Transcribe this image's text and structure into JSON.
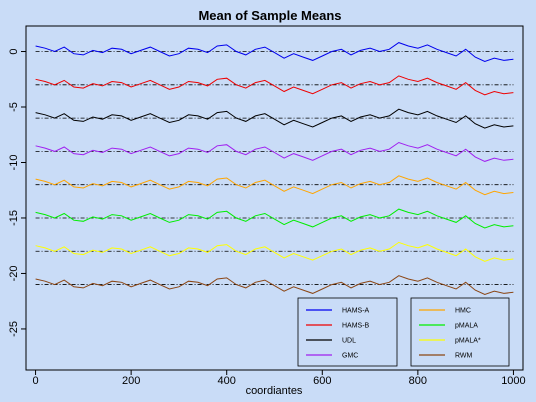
{
  "chart_data": {
    "type": "line",
    "title": "Mean of Sample Means",
    "xlabel": "coordiantes",
    "ylabel": "",
    "xlim": [
      -20,
      1020
    ],
    "ylim": [
      -28.7,
      2.3
    ],
    "x_ticks": [
      0,
      200,
      400,
      600,
      800,
      1000
    ],
    "y_ticks": [
      0,
      -5,
      -10,
      -15,
      -20,
      -25
    ],
    "x_tick_labels": [
      "0",
      "200",
      "400",
      "600",
      "800",
      "1000"
    ],
    "y_tick_labels": [
      "0",
      "-5",
      "-10",
      "-15",
      "-20",
      "-25"
    ],
    "reference_lines": [
      0,
      -3,
      -6,
      -9,
      -12,
      -15,
      -18,
      -21
    ],
    "legend_position": "bottom-right",
    "legend_columns": [
      [
        "HAMS-A",
        "HAMS-B",
        "UDL",
        "GMC"
      ],
      [
        "HMC",
        "pMALA",
        "pMALA*",
        "RWM"
      ]
    ],
    "series": [
      {
        "name": "HAMS-A",
        "color": "#0000ee",
        "offset": 0,
        "x": [
          0,
          20,
          40,
          60,
          80,
          100,
          120,
          140,
          160,
          180,
          200,
          220,
          240,
          260,
          280,
          300,
          320,
          340,
          360,
          380,
          400,
          420,
          440,
          460,
          480,
          500,
          520,
          540,
          560,
          580,
          600,
          620,
          640,
          660,
          680,
          700,
          720,
          740,
          760,
          780,
          800,
          820,
          840,
          860,
          880,
          900,
          920,
          940,
          960,
          980,
          1000
        ],
        "values": [
          0.5,
          0.3,
          0.0,
          0.4,
          -0.2,
          -0.3,
          0.1,
          -0.1,
          0.3,
          0.2,
          -0.2,
          0.1,
          0.4,
          0.0,
          -0.4,
          -0.2,
          0.3,
          0.2,
          -0.1,
          0.5,
          0.6,
          0.0,
          -0.3,
          0.2,
          0.4,
          -0.1,
          -0.6,
          -0.2,
          -0.5,
          -0.8,
          -0.4,
          0.0,
          0.2,
          -0.3,
          0.1,
          0.3,
          0.0,
          0.2,
          0.8,
          0.5,
          0.3,
          0.6,
          0.2,
          -0.1,
          -0.4,
          0.2,
          -0.5,
          -0.9,
          -0.6,
          -0.8,
          -0.7
        ]
      },
      {
        "name": "HAMS-B",
        "color": "#ee0000",
        "offset": -3,
        "x": [
          0,
          20,
          40,
          60,
          80,
          100,
          120,
          140,
          160,
          180,
          200,
          220,
          240,
          260,
          280,
          300,
          320,
          340,
          360,
          380,
          400,
          420,
          440,
          460,
          480,
          500,
          520,
          540,
          560,
          580,
          600,
          620,
          640,
          660,
          680,
          700,
          720,
          740,
          760,
          780,
          800,
          820,
          840,
          860,
          880,
          900,
          920,
          940,
          960,
          980,
          1000
        ],
        "values": [
          0.5,
          0.3,
          0.0,
          0.4,
          -0.2,
          -0.3,
          0.1,
          -0.1,
          0.3,
          0.2,
          -0.2,
          0.1,
          0.4,
          0.0,
          -0.4,
          -0.2,
          0.3,
          0.2,
          -0.1,
          0.5,
          0.6,
          0.0,
          -0.3,
          0.2,
          0.4,
          -0.1,
          -0.6,
          -0.2,
          -0.5,
          -0.8,
          -0.4,
          0.0,
          0.2,
          -0.3,
          0.1,
          0.3,
          0.0,
          0.2,
          0.8,
          0.5,
          0.3,
          0.6,
          0.2,
          -0.1,
          -0.4,
          0.2,
          -0.5,
          -0.9,
          -0.6,
          -0.8,
          -0.7
        ]
      },
      {
        "name": "UDL",
        "color": "#000000",
        "offset": -6,
        "x": [
          0,
          20,
          40,
          60,
          80,
          100,
          120,
          140,
          160,
          180,
          200,
          220,
          240,
          260,
          280,
          300,
          320,
          340,
          360,
          380,
          400,
          420,
          440,
          460,
          480,
          500,
          520,
          540,
          560,
          580,
          600,
          620,
          640,
          660,
          680,
          700,
          720,
          740,
          760,
          780,
          800,
          820,
          840,
          860,
          880,
          900,
          920,
          940,
          960,
          980,
          1000
        ],
        "values": [
          0.5,
          0.3,
          0.0,
          0.4,
          -0.2,
          -0.3,
          0.1,
          -0.1,
          0.3,
          0.2,
          -0.2,
          0.1,
          0.4,
          0.0,
          -0.4,
          -0.2,
          0.3,
          0.2,
          -0.1,
          0.5,
          0.6,
          0.0,
          -0.3,
          0.2,
          0.4,
          -0.1,
          -0.6,
          -0.2,
          -0.5,
          -0.8,
          -0.4,
          0.0,
          0.2,
          -0.3,
          0.1,
          0.3,
          0.0,
          0.2,
          0.8,
          0.5,
          0.3,
          0.6,
          0.2,
          -0.1,
          -0.4,
          0.2,
          -0.5,
          -0.9,
          -0.6,
          -0.8,
          -0.7
        ]
      },
      {
        "name": "GMC",
        "color": "#a020f0",
        "offset": -9,
        "x": [
          0,
          20,
          40,
          60,
          80,
          100,
          120,
          140,
          160,
          180,
          200,
          220,
          240,
          260,
          280,
          300,
          320,
          340,
          360,
          380,
          400,
          420,
          440,
          460,
          480,
          500,
          520,
          540,
          560,
          580,
          600,
          620,
          640,
          660,
          680,
          700,
          720,
          740,
          760,
          780,
          800,
          820,
          840,
          860,
          880,
          900,
          920,
          940,
          960,
          980,
          1000
        ],
        "values": [
          0.5,
          0.3,
          0.0,
          0.4,
          -0.2,
          -0.3,
          0.1,
          -0.1,
          0.3,
          0.2,
          -0.2,
          0.1,
          0.4,
          0.0,
          -0.4,
          -0.2,
          0.3,
          0.2,
          -0.1,
          0.5,
          0.6,
          0.0,
          -0.3,
          0.2,
          0.4,
          -0.1,
          -0.6,
          -0.2,
          -0.5,
          -0.8,
          -0.4,
          0.0,
          0.2,
          -0.3,
          0.1,
          0.3,
          0.0,
          0.2,
          0.8,
          0.5,
          0.3,
          0.6,
          0.2,
          -0.1,
          -0.4,
          0.2,
          -0.5,
          -0.9,
          -0.6,
          -0.8,
          -0.7
        ]
      },
      {
        "name": "HMC",
        "color": "#ffa500",
        "offset": -12,
        "x": [
          0,
          20,
          40,
          60,
          80,
          100,
          120,
          140,
          160,
          180,
          200,
          220,
          240,
          260,
          280,
          300,
          320,
          340,
          360,
          380,
          400,
          420,
          440,
          460,
          480,
          500,
          520,
          540,
          560,
          580,
          600,
          620,
          640,
          660,
          680,
          700,
          720,
          740,
          760,
          780,
          800,
          820,
          840,
          860,
          880,
          900,
          920,
          940,
          960,
          980,
          1000
        ],
        "values": [
          0.5,
          0.3,
          0.0,
          0.4,
          -0.2,
          -0.3,
          0.1,
          -0.1,
          0.3,
          0.2,
          -0.2,
          0.1,
          0.4,
          0.0,
          -0.4,
          -0.2,
          0.3,
          0.2,
          -0.1,
          0.5,
          0.6,
          0.0,
          -0.3,
          0.2,
          0.4,
          -0.1,
          -0.6,
          -0.2,
          -0.5,
          -0.8,
          -0.4,
          0.0,
          0.2,
          -0.3,
          0.1,
          0.3,
          0.0,
          0.2,
          0.8,
          0.5,
          0.3,
          0.6,
          0.2,
          -0.1,
          -0.4,
          0.2,
          -0.5,
          -0.9,
          -0.6,
          -0.8,
          -0.7
        ]
      },
      {
        "name": "pMALA",
        "color": "#00ee00",
        "offset": -15,
        "x": [
          0,
          20,
          40,
          60,
          80,
          100,
          120,
          140,
          160,
          180,
          200,
          220,
          240,
          260,
          280,
          300,
          320,
          340,
          360,
          380,
          400,
          420,
          440,
          460,
          480,
          500,
          520,
          540,
          560,
          580,
          600,
          620,
          640,
          660,
          680,
          700,
          720,
          740,
          760,
          780,
          800,
          820,
          840,
          860,
          880,
          900,
          920,
          940,
          960,
          980,
          1000
        ],
        "values": [
          0.5,
          0.3,
          0.0,
          0.4,
          -0.2,
          -0.3,
          0.1,
          -0.1,
          0.3,
          0.2,
          -0.2,
          0.1,
          0.4,
          0.0,
          -0.4,
          -0.2,
          0.3,
          0.2,
          -0.1,
          0.5,
          0.6,
          0.0,
          -0.3,
          0.2,
          0.4,
          -0.1,
          -0.6,
          -0.2,
          -0.5,
          -0.8,
          -0.4,
          0.0,
          0.2,
          -0.3,
          0.1,
          0.3,
          0.0,
          0.2,
          0.8,
          0.5,
          0.3,
          0.6,
          0.2,
          -0.1,
          -0.4,
          0.2,
          -0.5,
          -0.9,
          -0.6,
          -0.8,
          -0.7
        ]
      },
      {
        "name": "pMALA*",
        "color": "#ffff00",
        "offset": -18,
        "x": [
          0,
          20,
          40,
          60,
          80,
          100,
          120,
          140,
          160,
          180,
          200,
          220,
          240,
          260,
          280,
          300,
          320,
          340,
          360,
          380,
          400,
          420,
          440,
          460,
          480,
          500,
          520,
          540,
          560,
          580,
          600,
          620,
          640,
          660,
          680,
          700,
          720,
          740,
          760,
          780,
          800,
          820,
          840,
          860,
          880,
          900,
          920,
          940,
          960,
          980,
          1000
        ],
        "values": [
          0.5,
          0.3,
          0.0,
          0.4,
          -0.2,
          -0.3,
          0.1,
          -0.1,
          0.3,
          0.2,
          -0.2,
          0.1,
          0.4,
          0.0,
          -0.4,
          -0.2,
          0.3,
          0.2,
          -0.1,
          0.5,
          0.6,
          0.0,
          -0.3,
          0.2,
          0.4,
          -0.1,
          -0.6,
          -0.2,
          -0.5,
          -0.8,
          -0.4,
          0.0,
          0.2,
          -0.3,
          0.1,
          0.3,
          0.0,
          0.2,
          0.8,
          0.5,
          0.3,
          0.6,
          0.2,
          -0.1,
          -0.4,
          0.2,
          -0.5,
          -0.9,
          -0.6,
          -0.8,
          -0.7
        ]
      },
      {
        "name": "RWM",
        "color": "#8b4513",
        "offset": -21,
        "x": [
          0,
          20,
          40,
          60,
          80,
          100,
          120,
          140,
          160,
          180,
          200,
          220,
          240,
          260,
          280,
          300,
          320,
          340,
          360,
          380,
          400,
          420,
          440,
          460,
          480,
          500,
          520,
          540,
          560,
          580,
          600,
          620,
          640,
          660,
          680,
          700,
          720,
          740,
          760,
          780,
          800,
          820,
          840,
          860,
          880,
          900,
          920,
          940,
          960,
          980,
          1000
        ],
        "values": [
          0.5,
          0.3,
          0.0,
          0.4,
          -0.2,
          -0.3,
          0.1,
          -0.1,
          0.3,
          0.2,
          -0.2,
          0.1,
          0.4,
          0.0,
          -0.4,
          -0.2,
          0.3,
          0.2,
          -0.1,
          0.5,
          0.6,
          0.0,
          -0.3,
          0.2,
          0.4,
          -0.1,
          -0.6,
          -0.2,
          -0.5,
          -0.8,
          -0.4,
          0.0,
          0.2,
          -0.3,
          0.1,
          0.3,
          0.0,
          0.2,
          0.8,
          0.5,
          0.3,
          0.6,
          0.2,
          -0.1,
          -0.4,
          0.2,
          -0.5,
          -0.9,
          -0.6,
          -0.8,
          -0.7
        ]
      }
    ]
  }
}
